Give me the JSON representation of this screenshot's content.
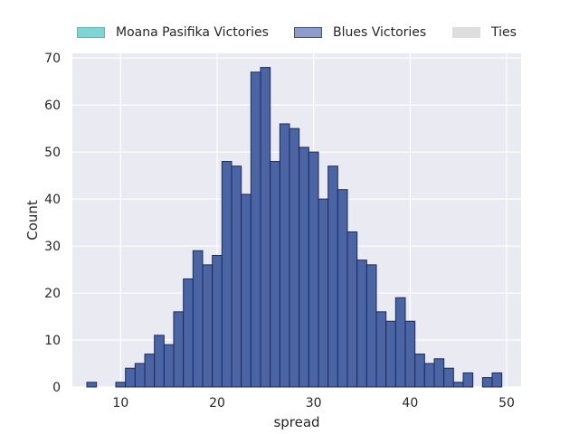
{
  "chart_data": {
    "type": "bar",
    "title": "",
    "xlabel": "spread",
    "ylabel": "Count",
    "xlim": [
      5,
      51.5
    ],
    "ylim": [
      0,
      71
    ],
    "grid": true,
    "legend_position": "top",
    "x_ticks": [
      10,
      20,
      30,
      40,
      50
    ],
    "y_ticks": [
      0,
      10,
      20,
      30,
      40,
      50,
      60,
      70
    ],
    "bin_width": 1,
    "legend": [
      {
        "name": "Moana Pasifika Victories",
        "color": "#7fd4d4",
        "edge": "#5fb8b8"
      },
      {
        "name": "Blues Victories",
        "color": "#8e9cc8",
        "edge": "#3f4f8f"
      },
      {
        "name": "Ties",
        "color": "#dedede",
        "edge": "#dedede"
      }
    ],
    "series": [
      {
        "name": "Blues Victories",
        "color": "#4a64a4",
        "edge": "#1c2a5a",
        "bins": [
          {
            "x": 6.5,
            "count": 1
          },
          {
            "x": 9.5,
            "count": 1
          },
          {
            "x": 10.5,
            "count": 4
          },
          {
            "x": 11.5,
            "count": 5
          },
          {
            "x": 12.5,
            "count": 7
          },
          {
            "x": 13.5,
            "count": 11
          },
          {
            "x": 14.5,
            "count": 9
          },
          {
            "x": 15.5,
            "count": 16
          },
          {
            "x": 16.5,
            "count": 23
          },
          {
            "x": 17.5,
            "count": 29
          },
          {
            "x": 18.5,
            "count": 26
          },
          {
            "x": 19.5,
            "count": 28
          },
          {
            "x": 20.5,
            "count": 48
          },
          {
            "x": 21.5,
            "count": 47
          },
          {
            "x": 22.5,
            "count": 41
          },
          {
            "x": 23.5,
            "count": 67
          },
          {
            "x": 24.5,
            "count": 68
          },
          {
            "x": 25.5,
            "count": 48
          },
          {
            "x": 26.5,
            "count": 56
          },
          {
            "x": 27.5,
            "count": 55
          },
          {
            "x": 28.5,
            "count": 51
          },
          {
            "x": 29.5,
            "count": 50
          },
          {
            "x": 30.5,
            "count": 40
          },
          {
            "x": 31.5,
            "count": 47
          },
          {
            "x": 32.5,
            "count": 42
          },
          {
            "x": 33.5,
            "count": 33
          },
          {
            "x": 34.5,
            "count": 27
          },
          {
            "x": 35.5,
            "count": 26
          },
          {
            "x": 36.5,
            "count": 16
          },
          {
            "x": 37.5,
            "count": 14
          },
          {
            "x": 38.5,
            "count": 19
          },
          {
            "x": 39.5,
            "count": 14
          },
          {
            "x": 40.5,
            "count": 7
          },
          {
            "x": 41.5,
            "count": 5
          },
          {
            "x": 42.5,
            "count": 6
          },
          {
            "x": 43.5,
            "count": 4
          },
          {
            "x": 44.5,
            "count": 1
          },
          {
            "x": 45.5,
            "count": 3
          },
          {
            "x": 47.5,
            "count": 2
          },
          {
            "x": 48.5,
            "count": 3
          }
        ]
      }
    ]
  }
}
